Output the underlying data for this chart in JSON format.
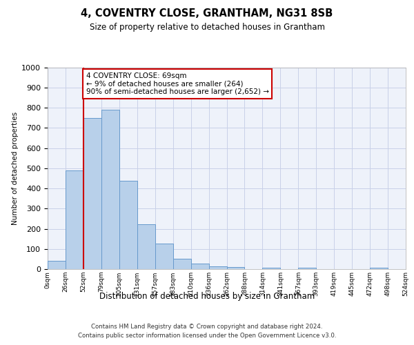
{
  "title": "4, COVENTRY CLOSE, GRANTHAM, NG31 8SB",
  "subtitle": "Size of property relative to detached houses in Grantham",
  "xlabel": "Distribution of detached houses by size in Grantham",
  "ylabel": "Number of detached properties",
  "bin_labels": [
    "0sqm",
    "26sqm",
    "52sqm",
    "79sqm",
    "105sqm",
    "131sqm",
    "157sqm",
    "183sqm",
    "210sqm",
    "236sqm",
    "262sqm",
    "288sqm",
    "314sqm",
    "341sqm",
    "367sqm",
    "393sqm",
    "419sqm",
    "445sqm",
    "472sqm",
    "498sqm",
    "524sqm"
  ],
  "bar_values": [
    42,
    490,
    750,
    790,
    438,
    222,
    127,
    51,
    27,
    15,
    10,
    0,
    8,
    0,
    8,
    0,
    0,
    0,
    8,
    0
  ],
  "bar_color": "#b8d0ea",
  "bar_edge_color": "#6699cc",
  "ylim_max": 1000,
  "yticks": [
    0,
    100,
    200,
    300,
    400,
    500,
    600,
    700,
    800,
    900,
    1000
  ],
  "red_line_x": 2,
  "annotation_text": "4 COVENTRY CLOSE: 69sqm\n← 9% of detached houses are smaller (264)\n90% of semi-detached houses are larger (2,652) →",
  "footer_line1": "Contains HM Land Registry data © Crown copyright and database right 2024.",
  "footer_line2": "Contains public sector information licensed under the Open Government Licence v3.0.",
  "bg_color": "#eef2fa",
  "grid_color": "#c8d0e8"
}
